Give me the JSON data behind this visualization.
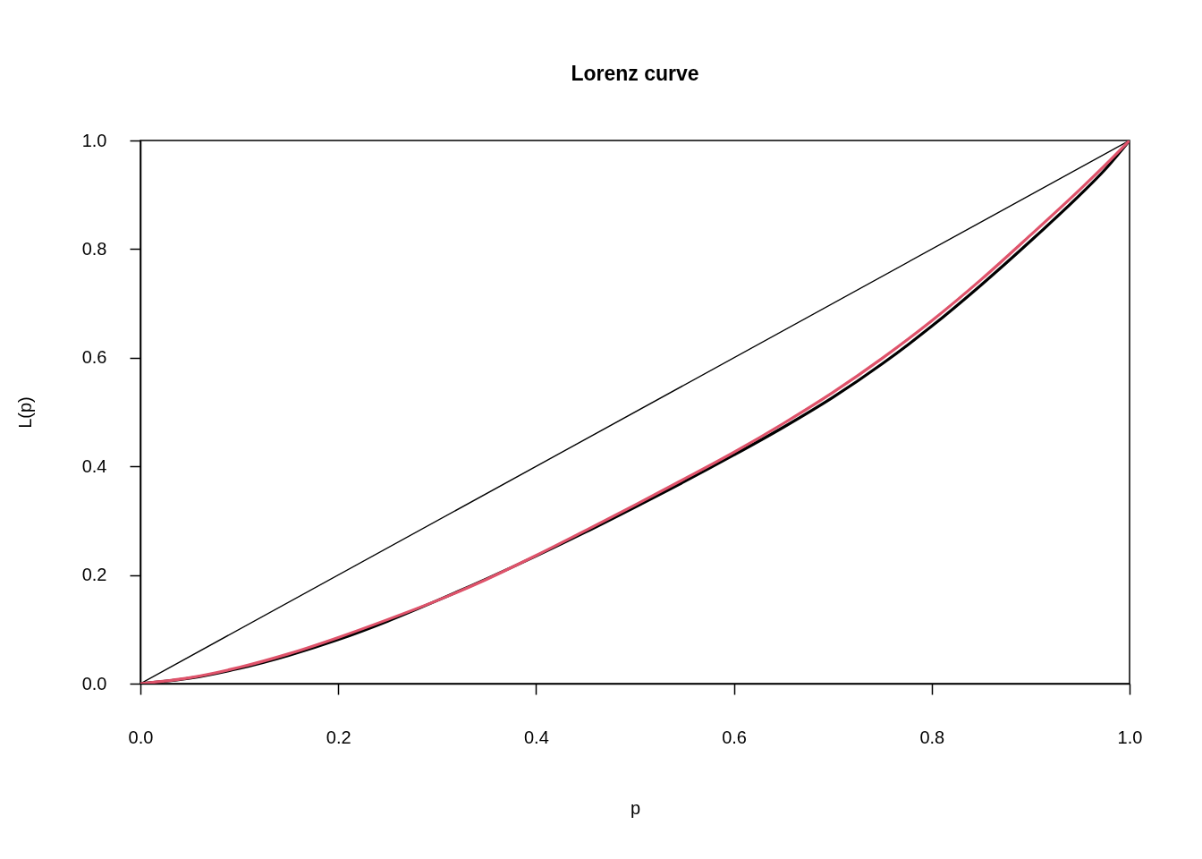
{
  "chart_data": {
    "type": "line",
    "title": "Lorenz curve",
    "xlabel": "p",
    "ylabel": "L(p)",
    "xlim": [
      0,
      1
    ],
    "ylim": [
      0,
      1
    ],
    "xticks": [
      {
        "value": 0,
        "label": "0.0"
      },
      0.2,
      0.4,
      0.6,
      0.8,
      {
        "value": 1,
        "label": "1.0"
      }
    ],
    "yticks": [
      {
        "value": 0,
        "label": "0.0"
      },
      0.2,
      0.4,
      0.6,
      0.8,
      {
        "value": 1,
        "label": "1.0"
      }
    ],
    "grid": false,
    "marker": "none",
    "line_style": "solid",
    "series": [
      {
        "color": "#000000",
        "x": [
          0,
          1
        ],
        "values": [
          0,
          1
        ]
      },
      {
        "color": "#000000",
        "x": [
          0,
          0.05,
          0.1,
          0.15,
          0.2,
          0.25,
          0.3,
          0.35,
          0.4,
          0.45,
          0.5,
          0.55,
          0.6,
          0.65,
          0.7,
          0.75,
          0.8,
          0.85,
          0.9,
          0.95,
          0.975,
          1
        ],
        "values": [
          0,
          0.01,
          0.028,
          0.052,
          0.081,
          0.115,
          0.153,
          0.193,
          0.235,
          0.279,
          0.325,
          0.372,
          0.421,
          0.472,
          0.527,
          0.589,
          0.658,
          0.734,
          0.815,
          0.9,
          0.946,
          1
        ]
      },
      {
        "color": "#df536b",
        "x": [
          0,
          0.05,
          0.1,
          0.15,
          0.2,
          0.25,
          0.3,
          0.35,
          0.4,
          0.45,
          0.5,
          0.55,
          0.6,
          0.65,
          0.7,
          0.75,
          0.8,
          0.85,
          0.9,
          0.95,
          0.975,
          1
        ],
        "values": [
          0,
          0.011,
          0.03,
          0.055,
          0.085,
          0.118,
          0.153,
          0.192,
          0.236,
          0.282,
          0.329,
          0.377,
          0.426,
          0.479,
          0.536,
          0.599,
          0.668,
          0.744,
          0.826,
          0.91,
          0.954,
          1
        ]
      }
    ]
  }
}
